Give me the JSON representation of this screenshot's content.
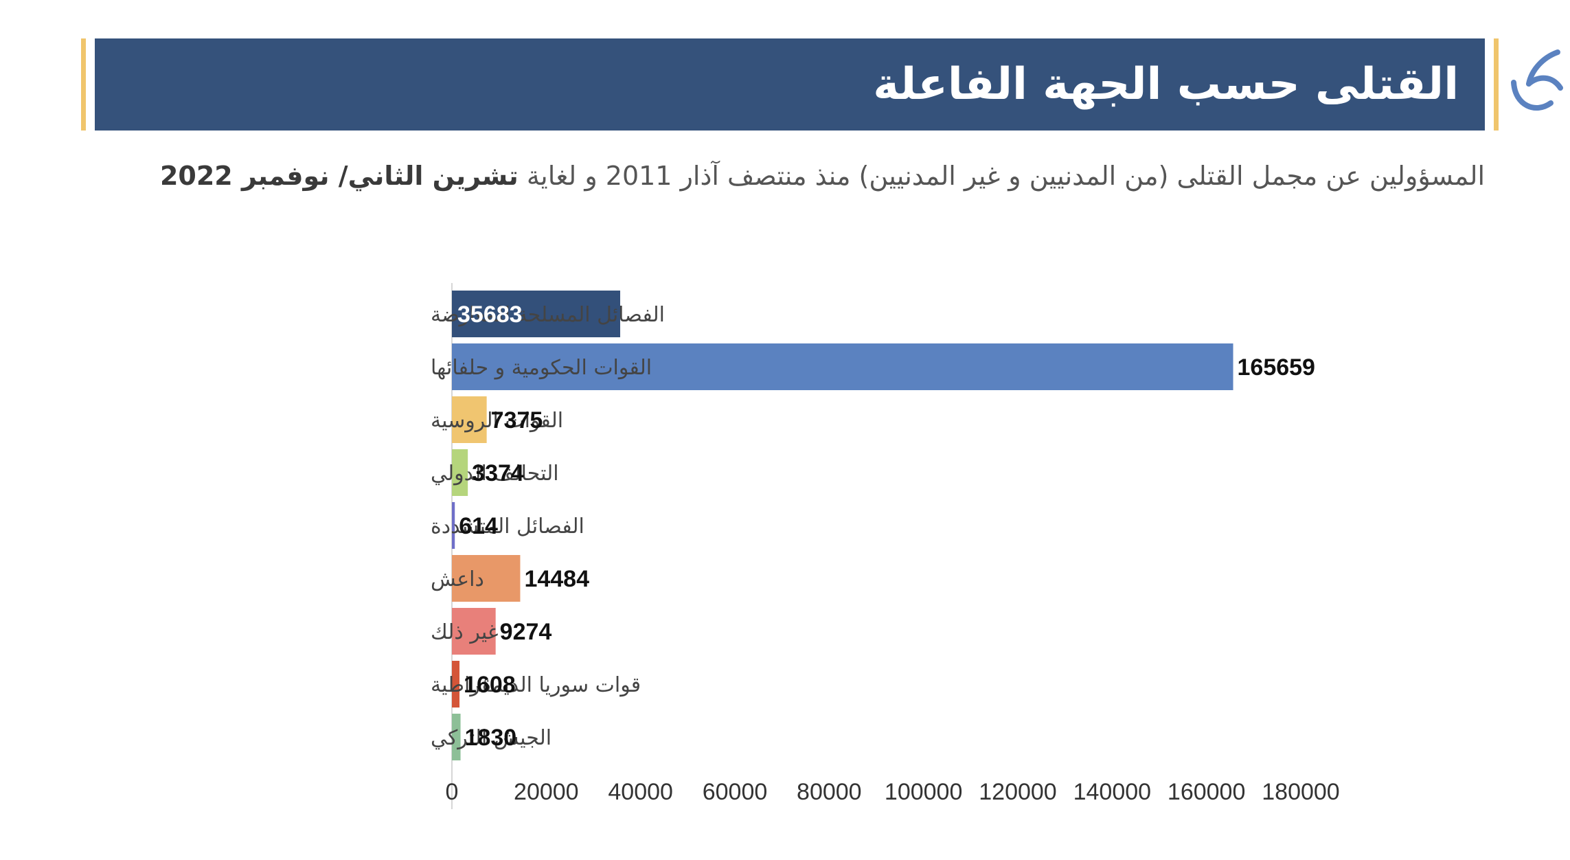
{
  "header": {
    "title": "القتلى حسب الجهة الفاعلة",
    "subtitle_main": "المسؤولين عن مجمل القتلى (من المدنيين و غير المدنيين) منذ منتصف آذار 2011 و لغاية",
    "subtitle_bold": "تشرين الثاني/ نوفمبر 2022"
  },
  "colors": {
    "banner": "#35527b",
    "accent": "#f0c56c"
  },
  "icons": {
    "logo": "brand-logo-icon"
  },
  "chart_data": {
    "type": "bar",
    "orientation": "horizontal",
    "categories": [
      "الفصائل المسلحة للمعارضة",
      "القوات الحكومية و حلفائها",
      "القوات الروسية",
      "التحالف الدولي",
      "الفصائل المتشددة",
      "داعش",
      "غير ذلك",
      "قوات سوريا الديمقراطية",
      "الجيش التركي"
    ],
    "values": [
      35683,
      165659,
      7375,
      3374,
      614,
      14484,
      9274,
      1608,
      1830
    ],
    "colors": [
      "#33507a",
      "#5b82c0",
      "#f0c570",
      "#b5d57c",
      "#6f6fc8",
      "#e89868",
      "#e8807a",
      "#d45538",
      "#8dbf97"
    ],
    "value_label_colors": [
      "#ffffff",
      "#111111",
      "#111111",
      "#111111",
      "#111111",
      "#111111",
      "#111111",
      "#111111",
      "#111111"
    ],
    "xlim": [
      0,
      180000
    ],
    "xticks": [
      0,
      20000,
      40000,
      60000,
      80000,
      100000,
      120000,
      140000,
      160000,
      180000
    ],
    "grid": false,
    "legend": "none"
  }
}
